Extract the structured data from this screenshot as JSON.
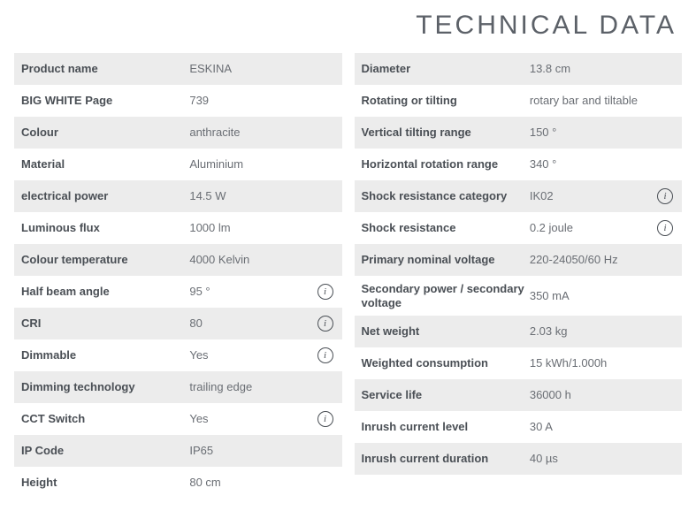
{
  "title": "TECHNICAL DATA",
  "colors": {
    "row_odd_bg": "#ececec",
    "row_even_bg": "#ffffff",
    "label_color": "#4a4f55",
    "value_color": "#6a6e74",
    "title_color": "#5c6168",
    "info_border": "#4a4f55"
  },
  "typography": {
    "title_fontsize": 30,
    "title_letterspacing": 3,
    "row_fontsize": 13
  },
  "left": {
    "rows": [
      {
        "label": "Product name",
        "value": "ESKINA",
        "info": false
      },
      {
        "label": "BIG WHITE Page",
        "value": "739",
        "info": false
      },
      {
        "label": "Colour",
        "value": "anthracite",
        "info": false
      },
      {
        "label": "Material",
        "value": "Aluminium",
        "info": false
      },
      {
        "label": "electrical power",
        "value": "14.5 W",
        "info": false
      },
      {
        "label": "Luminous flux",
        "value": "1000 lm",
        "info": false
      },
      {
        "label": "Colour temperature",
        "value": "4000 Kelvin",
        "info": false
      },
      {
        "label": "Half beam angle",
        "value": "95 °",
        "info": true
      },
      {
        "label": "CRI",
        "value": "80",
        "info": true
      },
      {
        "label": "Dimmable",
        "value": "Yes",
        "info": true
      },
      {
        "label": "Dimming technology",
        "value": "trailing edge",
        "info": false
      },
      {
        "label": "CCT Switch",
        "value": "Yes",
        "info": true
      },
      {
        "label": "IP Code",
        "value": "IP65",
        "info": false
      },
      {
        "label": "Height",
        "value": "80 cm",
        "info": false
      }
    ]
  },
  "right": {
    "rows": [
      {
        "label": "Diameter",
        "value": "13.8 cm",
        "info": false
      },
      {
        "label": "Rotating or tilting",
        "value": "rotary bar and tiltable",
        "info": false
      },
      {
        "label": "Vertical tilting range",
        "value": "150 °",
        "info": false
      },
      {
        "label": "Horizontal rotation range",
        "value": "340 °",
        "info": false
      },
      {
        "label": "Shock resistance category",
        "value": "IK02",
        "info": true
      },
      {
        "label": "Shock resistance",
        "value": "0.2 joule",
        "info": true
      },
      {
        "label": "Primary nominal voltage",
        "value": "220-24050/60 Hz",
        "info": false
      },
      {
        "label": "Secondary power / secondary voltage",
        "value": "350 mA",
        "info": false
      },
      {
        "label": "Net weight",
        "value": "2.03 kg",
        "info": false
      },
      {
        "label": "Weighted consumption",
        "value": "15 kWh/1.000h",
        "info": false
      },
      {
        "label": "Service life",
        "value": "36000 h",
        "info": false
      },
      {
        "label": "Inrush current level",
        "value": "30 A",
        "info": false
      },
      {
        "label": "Inrush current duration",
        "value": "40 µs",
        "info": false
      }
    ]
  }
}
